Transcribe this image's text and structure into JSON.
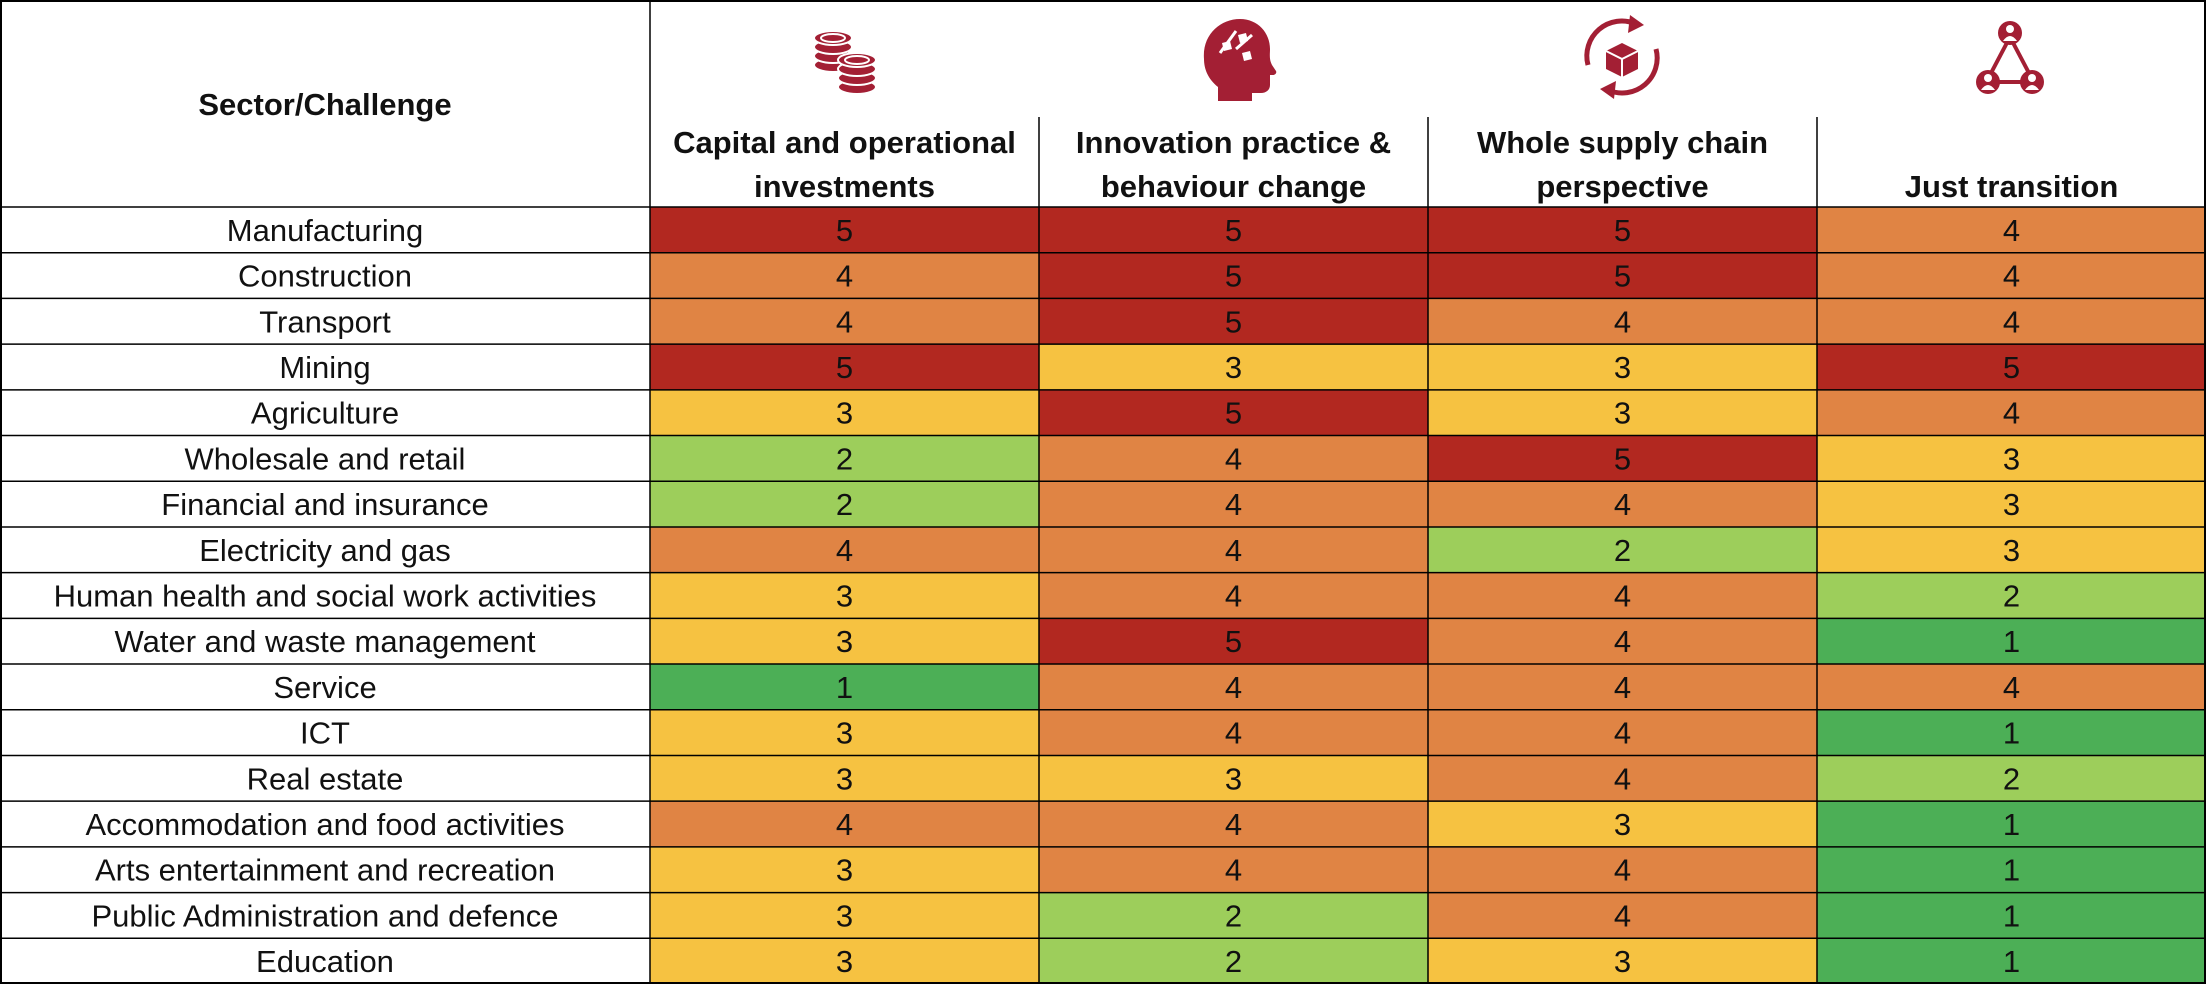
{
  "chart_data": {
    "type": "heatmap",
    "corner_label": "Sector/Challenge",
    "columns": [
      {
        "label": [
          "Capital and operational",
          "investments"
        ],
        "icon": "stacked-coins-icon"
      },
      {
        "label": [
          "Innovation practice &",
          "behaviour change"
        ],
        "icon": "head-puzzle-icon"
      },
      {
        "label": [
          "Whole supply chain",
          "perspective"
        ],
        "icon": "box-cycle-icon"
      },
      {
        "label": [
          "",
          "Just transition"
        ],
        "icon": "people-network-icon"
      }
    ],
    "rows": [
      "Manufacturing",
      "Construction",
      "Transport",
      "Mining",
      "Agriculture",
      "Wholesale and retail",
      "Financial and insurance",
      "Electricity and gas",
      "Human health and social work activities",
      "Water and waste management",
      "Service",
      "ICT",
      "Real estate",
      "Accommodation and food activities",
      "Arts entertainment and recreation",
      "Public Administration and defence",
      "Education"
    ],
    "values": [
      [
        5,
        5,
        5,
        4
      ],
      [
        4,
        5,
        5,
        4
      ],
      [
        4,
        5,
        4,
        4
      ],
      [
        5,
        3,
        3,
        5
      ],
      [
        3,
        5,
        3,
        4
      ],
      [
        2,
        4,
        5,
        3
      ],
      [
        2,
        4,
        4,
        3
      ],
      [
        4,
        4,
        2,
        3
      ],
      [
        3,
        4,
        4,
        2
      ],
      [
        3,
        5,
        4,
        1
      ],
      [
        1,
        4,
        4,
        4
      ],
      [
        3,
        4,
        4,
        1
      ],
      [
        3,
        3,
        4,
        2
      ],
      [
        4,
        4,
        3,
        1
      ],
      [
        3,
        4,
        4,
        1
      ],
      [
        3,
        2,
        4,
        1
      ],
      [
        3,
        2,
        3,
        1
      ]
    ],
    "color_scale": {
      "1": "#4caf56",
      "2": "#9dce5b",
      "3": "#f6c241",
      "4": "#e08444",
      "5": "#b22820"
    },
    "icon_color": "#a31f34"
  }
}
